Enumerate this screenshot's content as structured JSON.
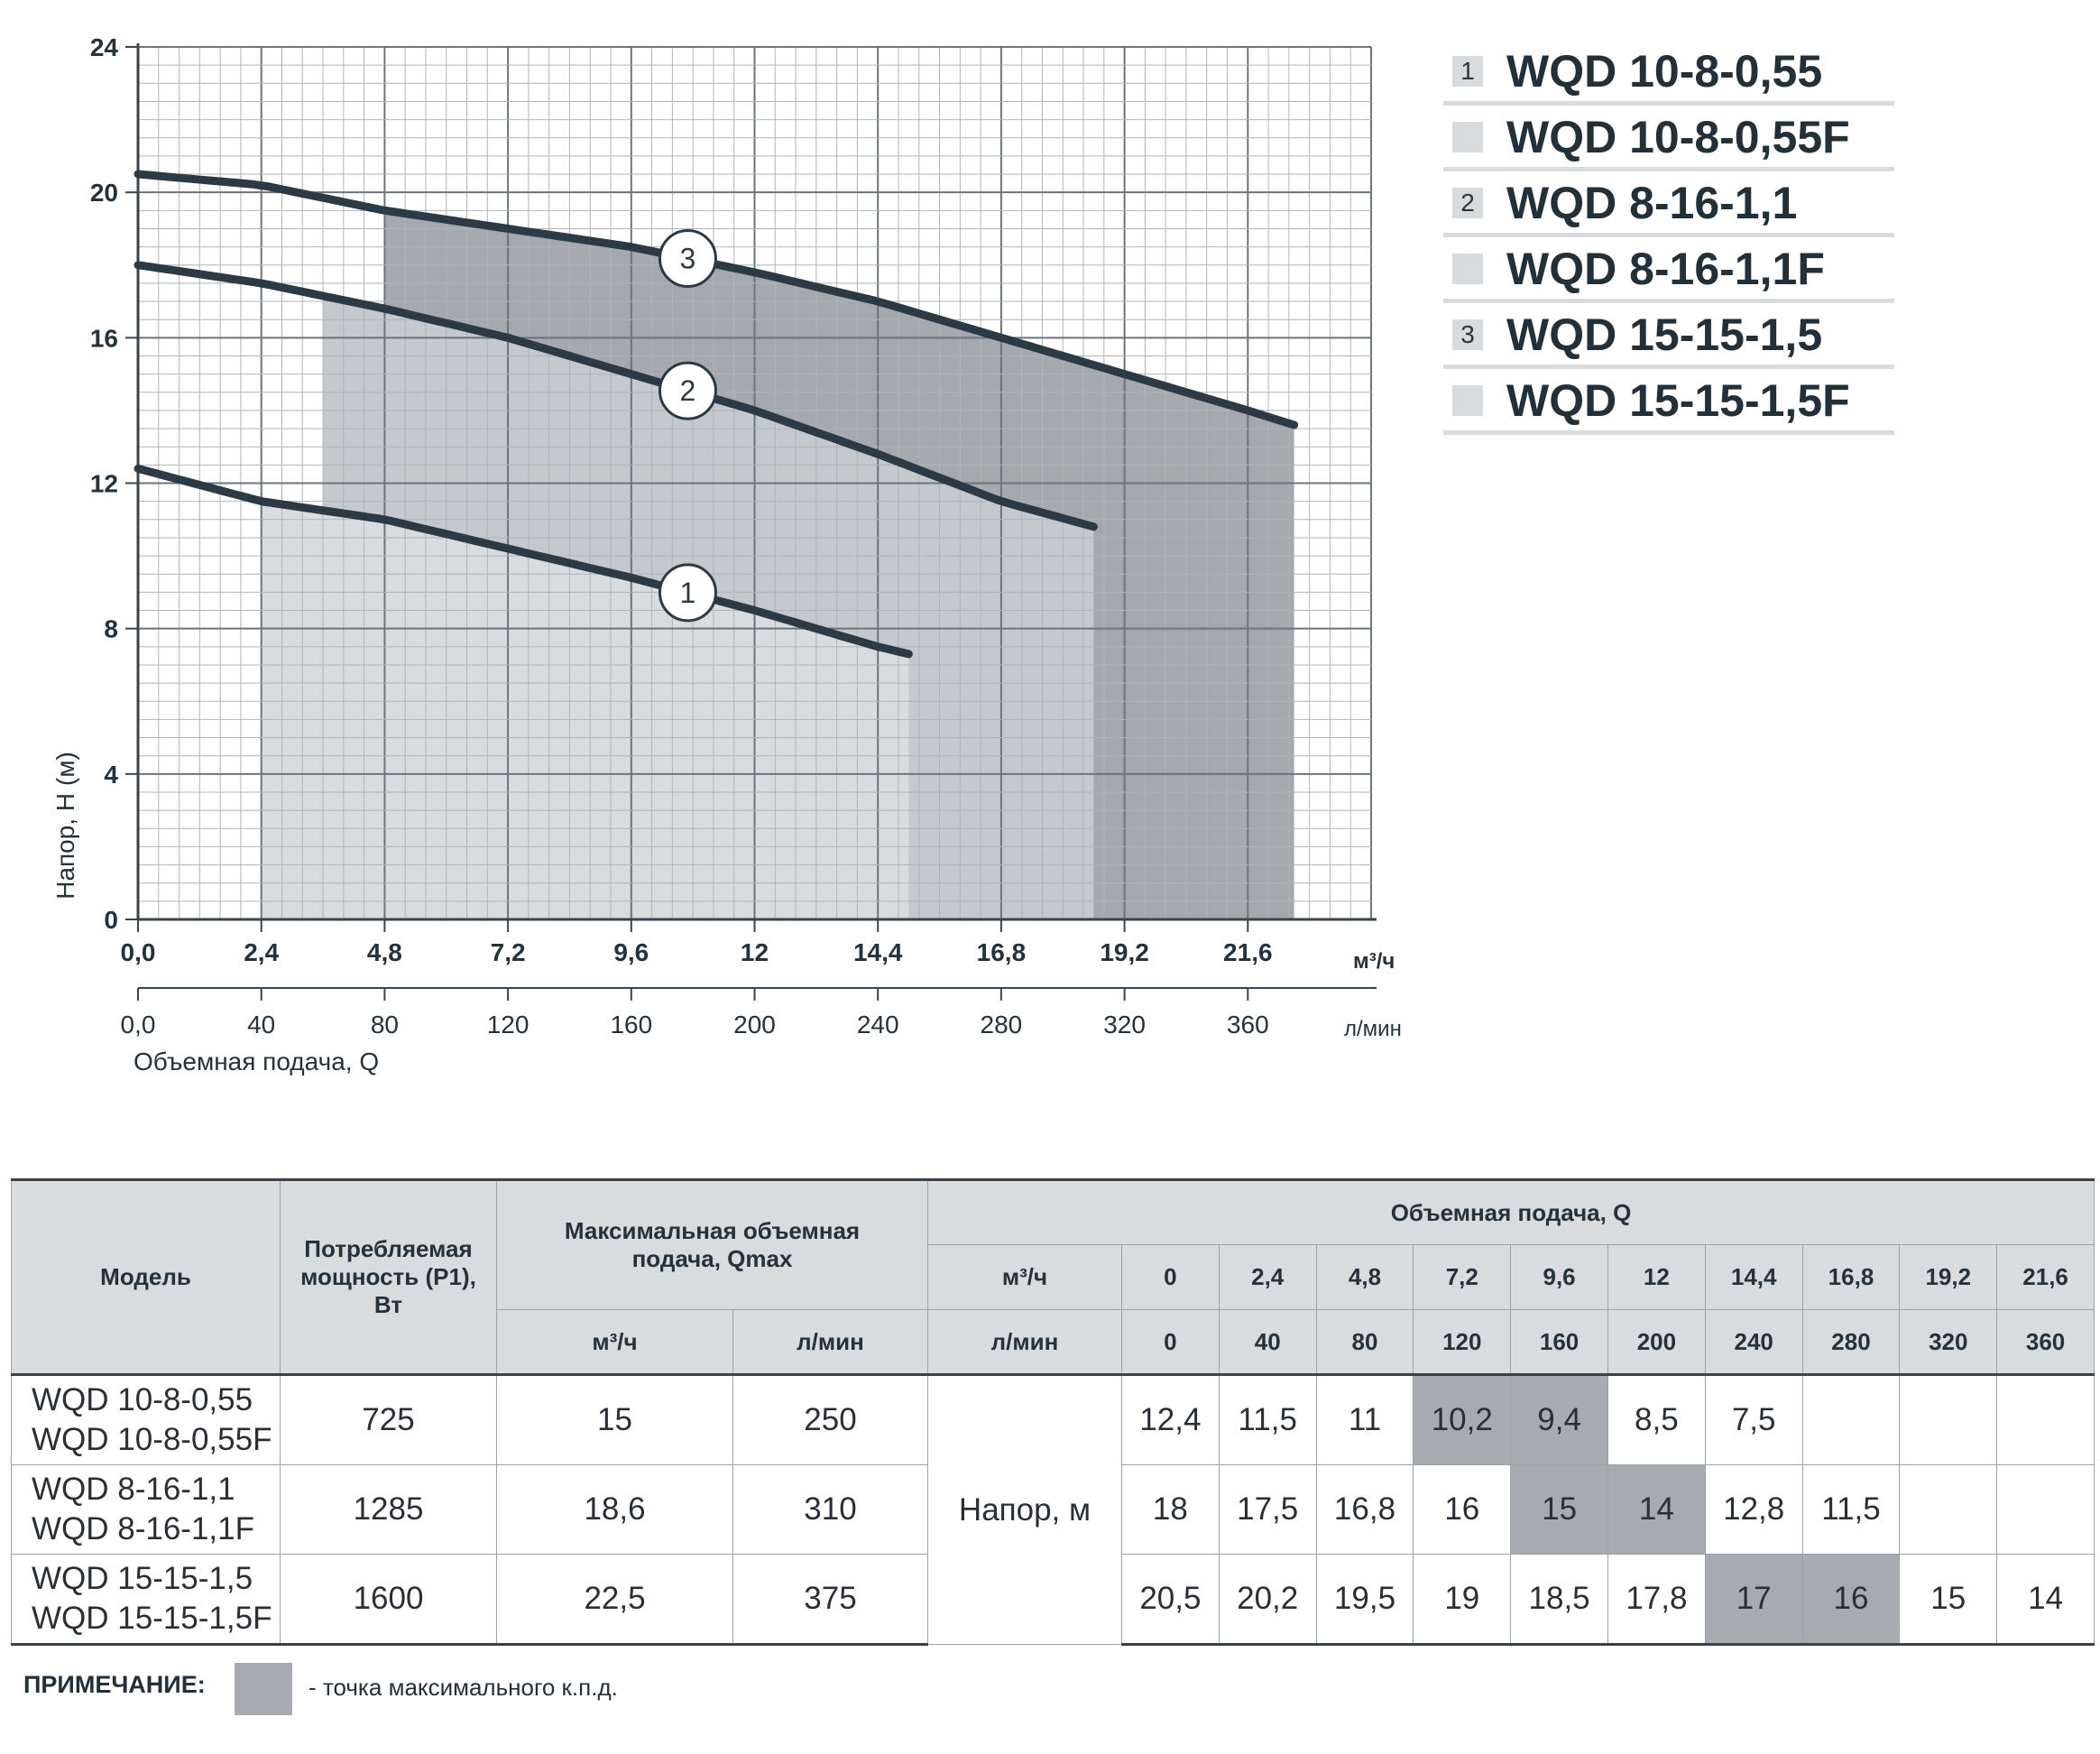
{
  "chart_data": {
    "type": "line",
    "ylabel": "Напор, H (м)",
    "xlabel": "Объемная подача, Q",
    "x_unit_primary": "м³/ч",
    "x_unit_secondary": "л/мин",
    "xlim": [
      0,
      24
    ],
    "ylim": [
      0,
      24
    ],
    "y_ticks": [
      "0",
      "4",
      "8",
      "12",
      "16",
      "20",
      "24"
    ],
    "x_ticks": [
      "0,0",
      "2,4",
      "4,8",
      "7,2",
      "9,6",
      "12",
      "14,4",
      "16,8",
      "19,2",
      "21,6"
    ],
    "x2_ticks": [
      "0,0",
      "40",
      "80",
      "120",
      "160",
      "200",
      "240",
      "280",
      "320",
      "360"
    ],
    "grid": true,
    "series": [
      {
        "marker": "1",
        "x": [
          0,
          2.4,
          4.8,
          7.2,
          9.6,
          12,
          14.4,
          15
        ],
        "y": [
          12.4,
          11.5,
          11,
          10.2,
          9.4,
          8.5,
          7.5,
          7.3
        ],
        "color": "#2b3a44"
      },
      {
        "marker": "2",
        "x": [
          0,
          2.4,
          4.8,
          7.2,
          9.6,
          12,
          14.4,
          16.8,
          18.6
        ],
        "y": [
          18,
          17.5,
          16.8,
          16,
          15,
          14,
          12.8,
          11.5,
          10.8
        ],
        "color": "#2b3a44"
      },
      {
        "marker": "3",
        "x": [
          0,
          2.4,
          4.8,
          7.2,
          9.6,
          12,
          14.4,
          16.8,
          19.2,
          21.6,
          22.5
        ],
        "y": [
          20.5,
          20.2,
          19.5,
          19,
          18.5,
          17.8,
          17,
          16,
          15,
          14,
          13.6
        ],
        "color": "#2b3a44"
      }
    ],
    "shaded_regions": [
      {
        "x": [
          2.4,
          15
        ],
        "color": "#d9dcdf"
      },
      {
        "x": [
          3.6,
          18.6
        ],
        "color": "#c5c9cd"
      },
      {
        "x": [
          4.8,
          22.5
        ],
        "color": "#a5a9ad"
      }
    ],
    "marker_positions": [
      {
        "label": "3",
        "x": 10.7
      },
      {
        "label": "2",
        "x": 10.7
      },
      {
        "label": "1",
        "x": 10.7
      }
    ]
  },
  "legend": [
    {
      "num": "1",
      "name": "WQD 10-8-0,55"
    },
    {
      "num": "",
      "name": "WQD 10-8-0,55F"
    },
    {
      "num": "2",
      "name": "WQD 8-16-1,1"
    },
    {
      "num": "",
      "name": "WQD 8-16-1,1F"
    },
    {
      "num": "3",
      "name": "WQD 15-15-1,5"
    },
    {
      "num": "",
      "name": "WQD 15-15-1,5F"
    }
  ],
  "table": {
    "h_model": "Модель",
    "h_power": "Потребляемая мощность (P1), Вт",
    "h_qmax": "Максимальная объемная подача, Qmax",
    "h_q": "Объемная подача, Q",
    "u_m3h": "м³/ч",
    "u_lmin": "л/мин",
    "q_m3h": [
      "0",
      "2,4",
      "4,8",
      "7,2",
      "9,6",
      "12",
      "14,4",
      "16,8",
      "19,2",
      "21,6"
    ],
    "q_lmin": [
      "0",
      "40",
      "80",
      "120",
      "160",
      "200",
      "240",
      "280",
      "320",
      "360"
    ],
    "head_label": "Напор, м",
    "rows": [
      {
        "models": [
          "WQD 10-8-0,55",
          "WQD 10-8-0,55F"
        ],
        "power": "725",
        "qmax_m3h": "15",
        "qmax_lmin": "250",
        "heads": [
          "12,4",
          "11,5",
          "11",
          "10,2",
          "9,4",
          "8,5",
          "7,5",
          "",
          "",
          ""
        ],
        "hl": [
          3,
          4
        ]
      },
      {
        "models": [
          "WQD 8-16-1,1",
          "WQD 8-16-1,1F"
        ],
        "power": "1285",
        "qmax_m3h": "18,6",
        "qmax_lmin": "310",
        "heads": [
          "18",
          "17,5",
          "16,8",
          "16",
          "15",
          "14",
          "12,8",
          "11,5",
          "",
          ""
        ],
        "hl": [
          4,
          5
        ]
      },
      {
        "models": [
          "WQD 15-15-1,5",
          "WQD 15-15-1,5F"
        ],
        "power": "1600",
        "qmax_m3h": "22,5",
        "qmax_lmin": "375",
        "heads": [
          "20,5",
          "20,2",
          "19,5",
          "19",
          "18,5",
          "17,8",
          "17",
          "16",
          "15",
          "14"
        ],
        "hl": [
          6,
          7
        ]
      }
    ]
  },
  "note": {
    "label": "ПРИМЕЧАНИЕ:",
    "text": "- точка максимального к.п.д."
  }
}
